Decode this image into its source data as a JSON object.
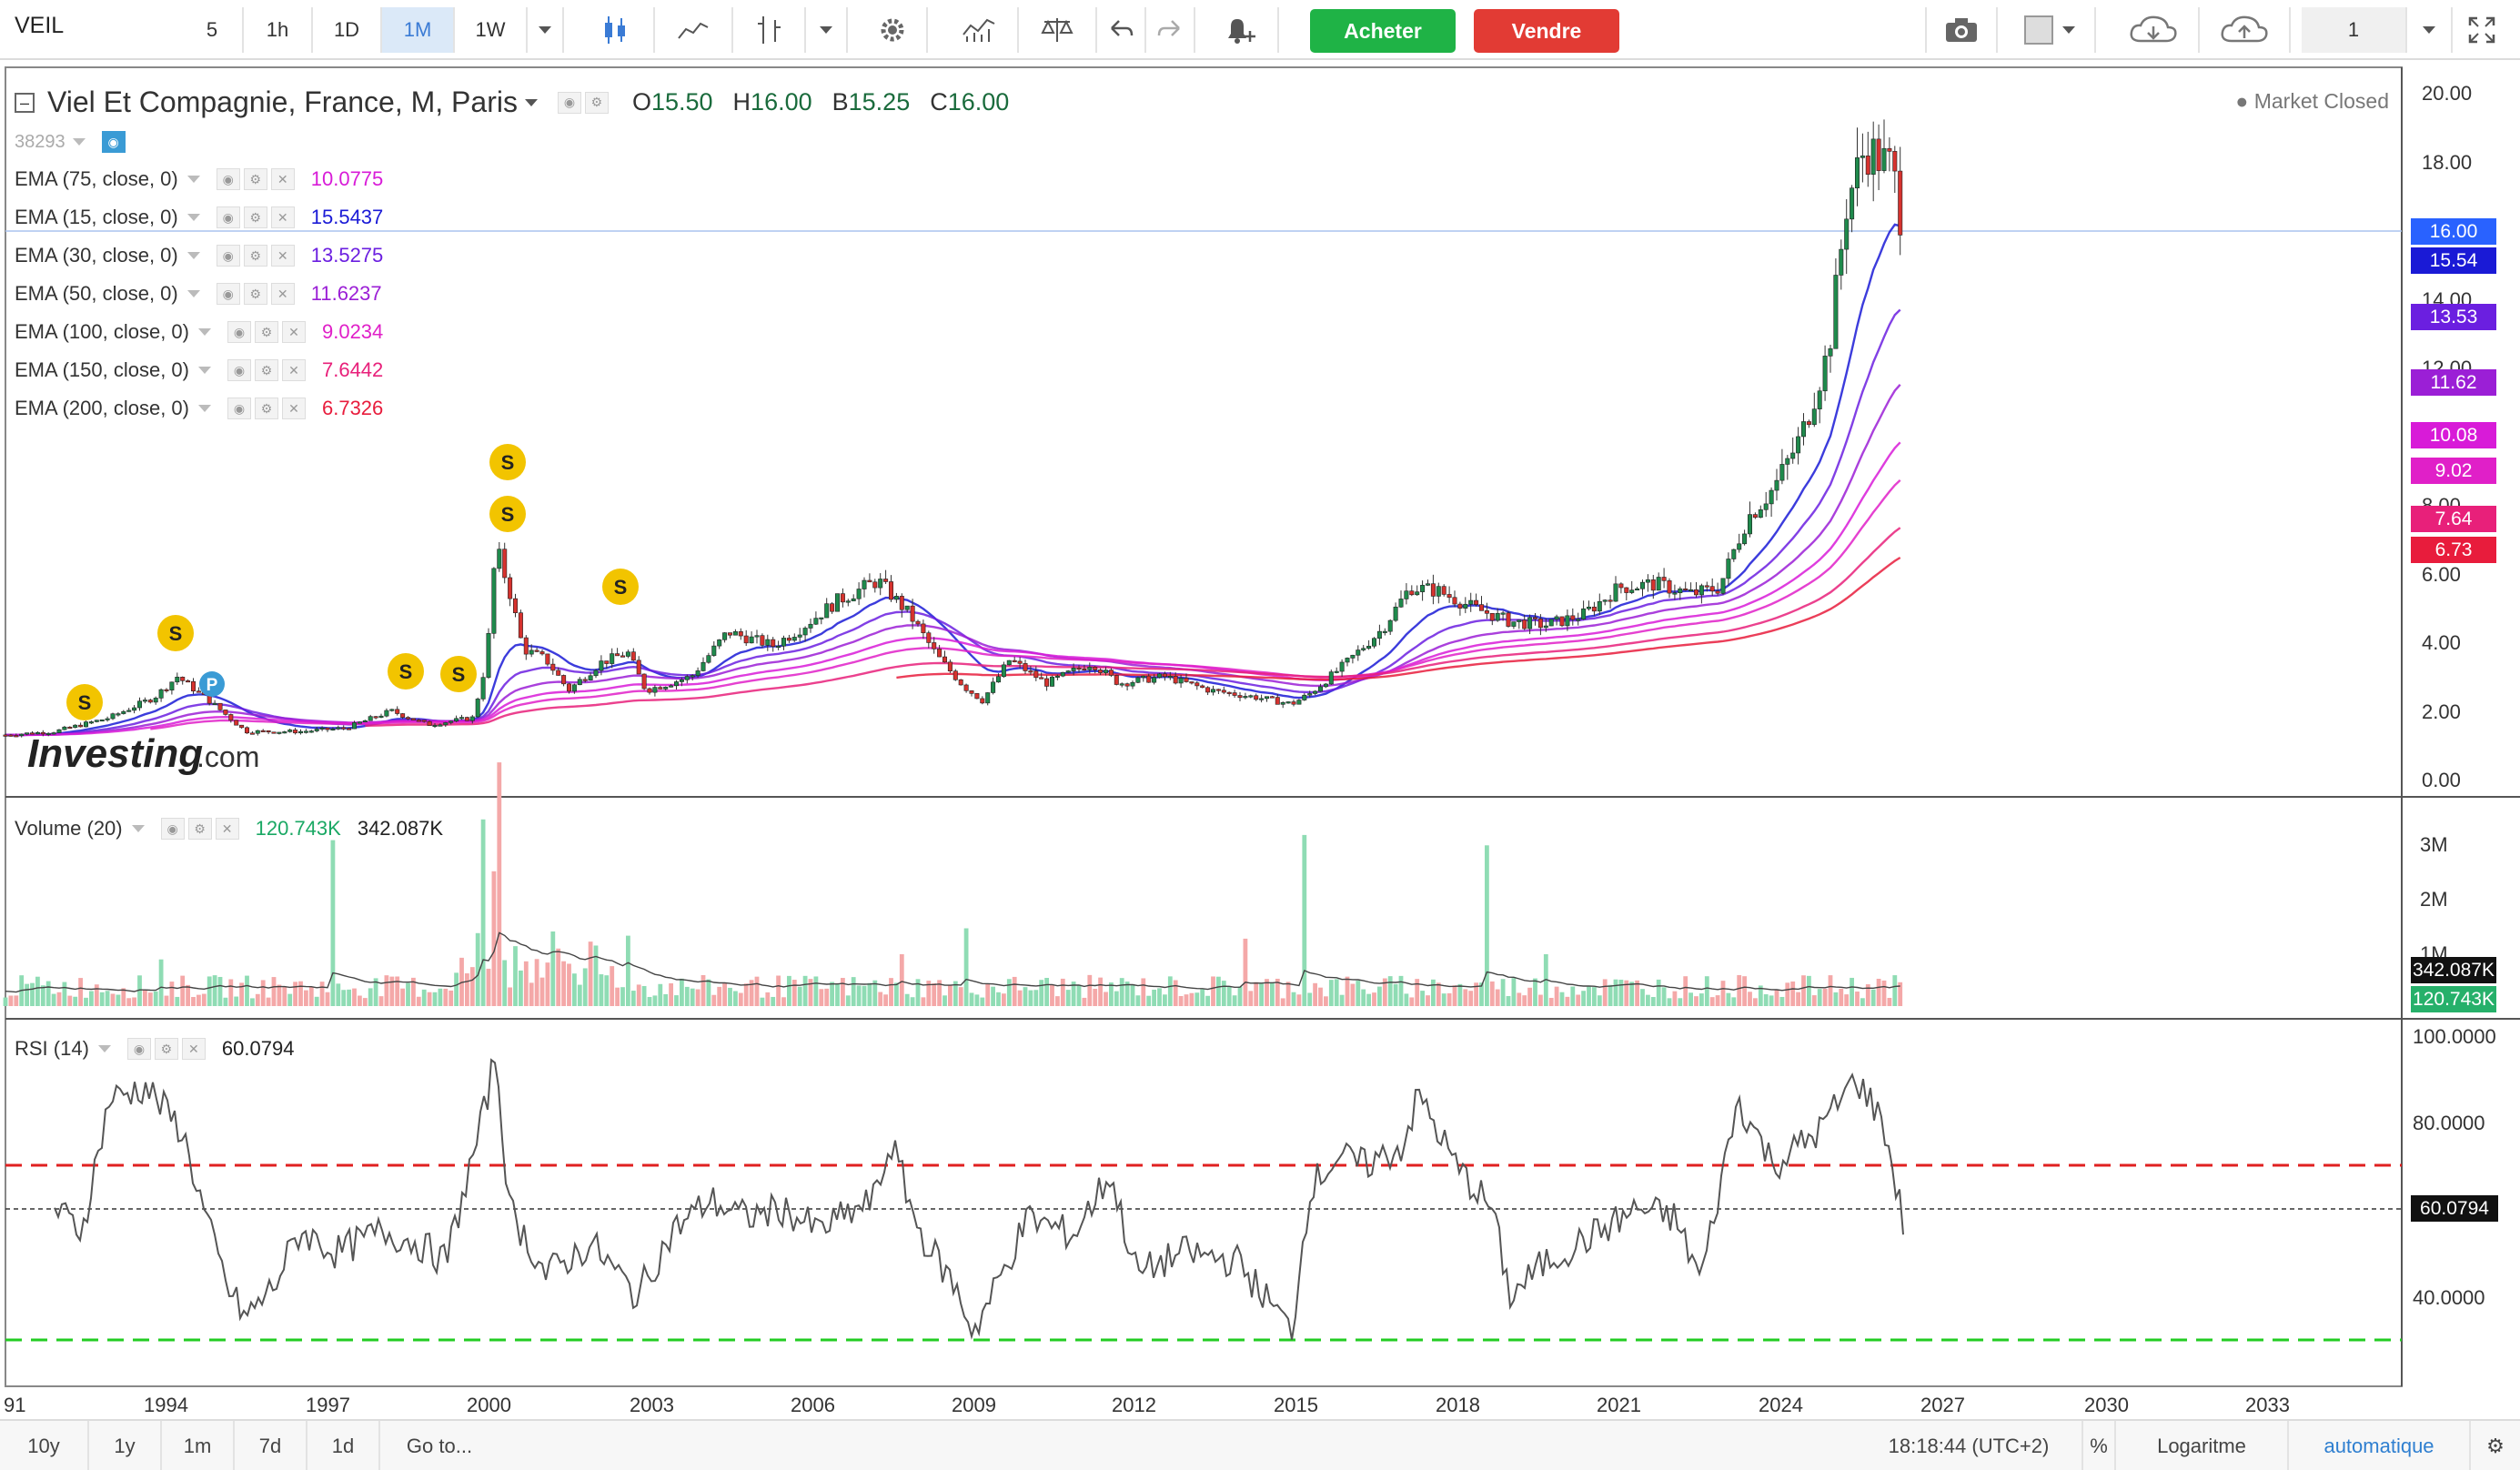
{
  "toolbar": {
    "symbol": "VEIL",
    "intervals": [
      "5",
      "1h",
      "1D",
      "1M",
      "1W"
    ],
    "active_interval": "1M",
    "buy_label": "Acheter",
    "sell_label": "Vendre",
    "layout_count": "1"
  },
  "header": {
    "title": "Viel Et Compagnie, France, M, Paris",
    "open_label": "O",
    "open": "15.50",
    "high_label": "H",
    "high": "16.00",
    "low_label": "B",
    "low": "15.25",
    "close_label": "C",
    "close": "16.00",
    "market_status": "Market Closed",
    "id_label": "38293"
  },
  "indicators": [
    {
      "label": "EMA (75, close, 0)",
      "value": "10.0775",
      "color": "#d81bd8"
    },
    {
      "label": "EMA (15, close, 0)",
      "value": "15.5437",
      "color": "#1a1ad6"
    },
    {
      "label": "EMA (30, close, 0)",
      "value": "13.5275",
      "color": "#6b1fe0"
    },
    {
      "label": "EMA (50, close, 0)",
      "value": "11.6237",
      "color": "#9b1fd6"
    },
    {
      "label": "EMA (100, close, 0)",
      "value": "9.0234",
      "color": "#e020c8"
    },
    {
      "label": "EMA (150, close, 0)",
      "value": "7.6442",
      "color": "#e8207a"
    },
    {
      "label": "EMA (200, close, 0)",
      "value": "6.7326",
      "color": "#e81c3c"
    }
  ],
  "price_axis": {
    "ticks": [
      "20.00",
      "18.00",
      "16.00",
      "14.00",
      "12.00",
      "10.00",
      "8.00",
      "6.00",
      "4.00",
      "2.00",
      "0.00"
    ],
    "tags": [
      {
        "value": "16.00",
        "color": "#2962ff"
      },
      {
        "value": "15.54",
        "color": "#1a1ad6"
      },
      {
        "value": "13.53",
        "color": "#6b1fe0"
      },
      {
        "value": "11.62",
        "color": "#9b1fd6"
      },
      {
        "value": "10.08",
        "color": "#d81bd8"
      },
      {
        "value": "9.02",
        "color": "#e020c8"
      },
      {
        "value": "7.64",
        "color": "#e8207a"
      },
      {
        "value": "6.73",
        "color": "#e81c3c"
      }
    ]
  },
  "volume": {
    "label": "Volume (20)",
    "value1": "120.743K",
    "value2": "342.087K",
    "ticks": [
      "3M",
      "2M",
      "1M"
    ],
    "tag1": "342.087K",
    "tag2": "120.743K"
  },
  "rsi": {
    "label": "RSI (14)",
    "value": "60.0794",
    "ticks": [
      "100.0000",
      "80.0000",
      "40.0000"
    ],
    "tag": "60.0794"
  },
  "time_axis": [
    "91",
    "1994",
    "1997",
    "2000",
    "2003",
    "2006",
    "2009",
    "2012",
    "2015",
    "2018",
    "2021",
    "2024",
    "2027",
    "2030",
    "2033"
  ],
  "bottom": {
    "ranges": [
      "10y",
      "1y",
      "1m",
      "7d",
      "1d"
    ],
    "goto": "Go to...",
    "clock": "18:18:44 (UTC+2)",
    "percent": "%",
    "log": "Logaritme",
    "auto": "automatique"
  },
  "watermark": "Investing.com",
  "signals": [
    "S",
    "S",
    "P",
    "S",
    "S",
    "S",
    "S",
    "S"
  ]
}
